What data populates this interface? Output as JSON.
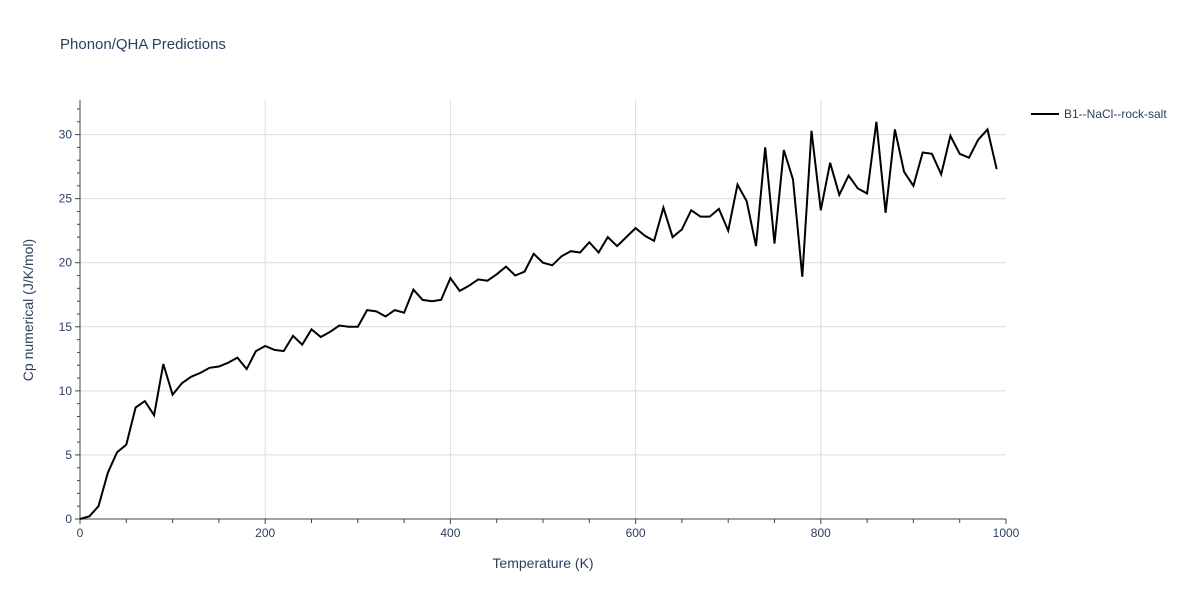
{
  "chart_data": {
    "type": "line",
    "title": "Phonon/QHA Predictions",
    "xlabel": "Temperature (K)",
    "ylabel": "Cp numerical (J/K/mol)",
    "xlim": [
      0,
      1000
    ],
    "ylim": [
      0,
      32.7
    ],
    "xticks": [
      0,
      200,
      400,
      600,
      800,
      1000
    ],
    "yticks": [
      0,
      5,
      10,
      15,
      20,
      25,
      30
    ],
    "grid": true,
    "legend_position": "top-right",
    "series": [
      {
        "name": "B1--NaCl--rock-salt",
        "color": "#000000",
        "x": [
          0,
          10,
          20,
          30,
          40,
          50,
          60,
          70,
          80,
          90,
          100,
          110,
          120,
          130,
          140,
          150,
          160,
          170,
          180,
          190,
          200,
          210,
          220,
          230,
          240,
          250,
          260,
          270,
          280,
          290,
          300,
          310,
          320,
          330,
          340,
          350,
          360,
          370,
          380,
          390,
          400,
          410,
          420,
          430,
          440,
          450,
          460,
          470,
          480,
          490,
          500,
          510,
          520,
          530,
          540,
          550,
          560,
          570,
          580,
          590,
          600,
          610,
          620,
          630,
          640,
          650,
          660,
          670,
          680,
          690,
          700,
          710,
          720,
          730,
          740,
          750,
          760,
          770,
          780,
          790,
          800,
          810,
          820,
          830,
          840,
          850,
          860,
          870,
          880,
          890,
          900,
          910,
          920,
          930,
          940,
          950,
          960,
          970,
          980,
          990
        ],
        "y": [
          0,
          0.2,
          1.0,
          3.6,
          5.2,
          5.8,
          8.7,
          9.2,
          8.1,
          12.1,
          9.7,
          10.6,
          11.1,
          11.4,
          11.8,
          11.9,
          12.2,
          12.6,
          11.7,
          13.1,
          13.5,
          13.2,
          13.1,
          14.3,
          13.6,
          14.8,
          14.2,
          14.6,
          15.1,
          15.0,
          15.0,
          16.3,
          16.2,
          15.8,
          16.3,
          16.1,
          17.9,
          17.1,
          17.0,
          17.1,
          18.8,
          17.8,
          18.2,
          18.7,
          18.6,
          19.1,
          19.7,
          19.0,
          19.3,
          20.7,
          20.0,
          19.8,
          20.5,
          20.9,
          20.8,
          21.6,
          20.8,
          22.0,
          21.3,
          22.0,
          22.7,
          22.1,
          21.7,
          24.3,
          22.0,
          22.6,
          24.1,
          23.6,
          23.6,
          24.2,
          22.5,
          26.1,
          24.8,
          21.3,
          29.0,
          21.5,
          28.8,
          26.5,
          18.9,
          30.3,
          24.1,
          27.8,
          25.3,
          26.8,
          25.8,
          25.4,
          31.0,
          23.9,
          30.4,
          27.1,
          26.0,
          28.6,
          28.5,
          26.9,
          29.9,
          28.5,
          28.2,
          29.6,
          30.4,
          27.3
        ]
      }
    ]
  }
}
